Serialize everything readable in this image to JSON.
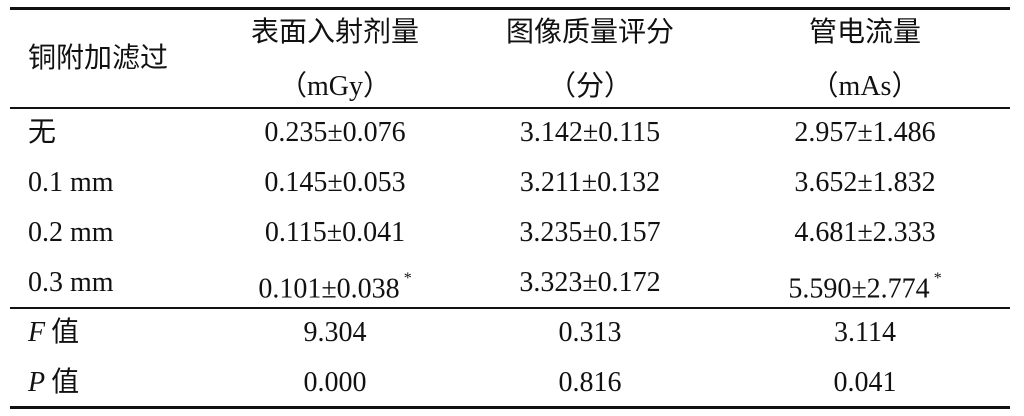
{
  "table": {
    "header": {
      "col0": "铜附加滤过",
      "columns": [
        {
          "name": "表面入射剂量",
          "unit": "（mGy）"
        },
        {
          "name": "图像质量评分",
          "unit": "（分）"
        },
        {
          "name": "管电流量",
          "unit": "（mAs）"
        }
      ]
    },
    "rows": [
      {
        "label": "无",
        "cells": [
          {
            "text": "0.235±0.076"
          },
          {
            "text": "3.142±0.115"
          },
          {
            "text": "2.957±1.486"
          }
        ]
      },
      {
        "label": "0.1 mm",
        "cells": [
          {
            "text": "0.145±0.053"
          },
          {
            "text": "3.211±0.132"
          },
          {
            "text": "3.652±1.832"
          }
        ]
      },
      {
        "label": "0.2 mm",
        "cells": [
          {
            "text": "0.115±0.041"
          },
          {
            "text": "3.235±0.157"
          },
          {
            "text": "4.681±2.333"
          }
        ]
      },
      {
        "label": "0.3 mm",
        "cells": [
          {
            "text": "0.101±0.038",
            "mark": "*"
          },
          {
            "text": "3.323±0.172"
          },
          {
            "text": "5.590±2.774",
            "mark": "*"
          }
        ]
      }
    ],
    "stats": [
      {
        "symbol": "F",
        "label": "值",
        "cells": [
          "9.304",
          "0.313",
          "3.114"
        ]
      },
      {
        "symbol": "P",
        "label": "值",
        "cells": [
          "0.000",
          "0.816",
          "0.041"
        ]
      }
    ]
  }
}
